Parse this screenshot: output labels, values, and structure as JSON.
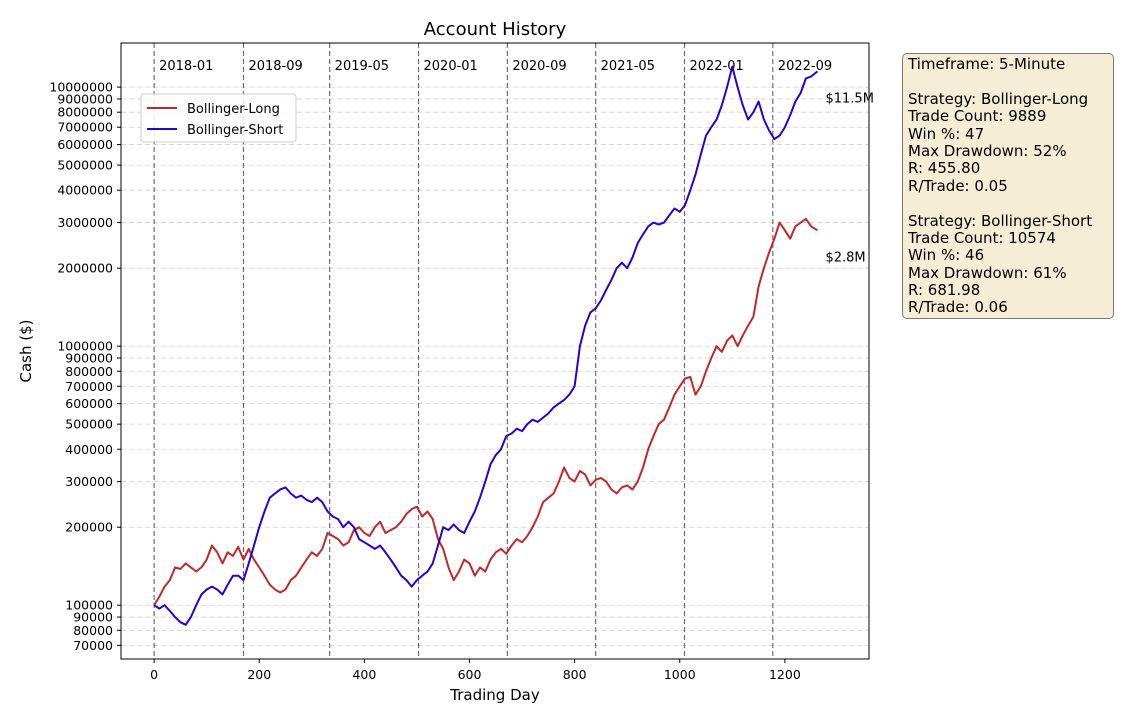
{
  "chart_data": {
    "type": "line",
    "title": "Account History",
    "xlabel": "Trading Day",
    "ylabel": "Cash ($)",
    "y_scale": "log",
    "xlim": [
      -63,
      1360
    ],
    "ylim": [
      62000,
      14800000
    ],
    "x_ticks": [
      0,
      200,
      400,
      600,
      800,
      1000,
      1200
    ],
    "x_tick_labels": [
      "0",
      "200",
      "400",
      "600",
      "800",
      "1000",
      "1200"
    ],
    "y_ticks": [
      70000,
      80000,
      90000,
      100000,
      200000,
      300000,
      400000,
      500000,
      600000,
      700000,
      800000,
      900000,
      1000000,
      2000000,
      3000000,
      4000000,
      5000000,
      6000000,
      7000000,
      8000000,
      9000000,
      10000000
    ],
    "y_tick_labels": [
      "70000",
      "80000",
      "90000",
      "100000",
      "200000",
      "300000",
      "400000",
      "500000",
      "600000",
      "700000",
      "800000",
      "900000",
      "1000000",
      "2000000",
      "3000000",
      "4000000",
      "5000000",
      "6000000",
      "7000000",
      "8000000",
      "9000000",
      "10000000"
    ],
    "grid": "horizontal dashed",
    "legend_position": "upper-left",
    "period_markers": [
      {
        "x": 0,
        "label": "2018-01"
      },
      {
        "x": 170,
        "label": "2018-09"
      },
      {
        "x": 334,
        "label": "2019-05"
      },
      {
        "x": 503,
        "label": "2020-01"
      },
      {
        "x": 672,
        "label": "2020-09"
      },
      {
        "x": 840,
        "label": "2021-05"
      },
      {
        "x": 1009,
        "label": "2022-01"
      },
      {
        "x": 1177,
        "label": "2022-09"
      }
    ],
    "series": [
      {
        "name": "Bollinger-Long",
        "color": "#c0282a",
        "end_label": "$2.8M",
        "x": [
          0,
          10,
          20,
          30,
          40,
          50,
          60,
          70,
          80,
          90,
          100,
          110,
          120,
          130,
          140,
          150,
          160,
          170,
          180,
          190,
          200,
          210,
          220,
          230,
          240,
          250,
          260,
          270,
          280,
          290,
          300,
          310,
          320,
          330,
          340,
          350,
          360,
          370,
          380,
          390,
          400,
          410,
          420,
          430,
          440,
          450,
          460,
          470,
          480,
          490,
          500,
          510,
          520,
          530,
          540,
          550,
          560,
          570,
          580,
          590,
          600,
          610,
          620,
          630,
          640,
          650,
          660,
          670,
          680,
          690,
          700,
          710,
          720,
          730,
          740,
          750,
          760,
          770,
          780,
          790,
          800,
          810,
          820,
          830,
          840,
          850,
          860,
          870,
          880,
          890,
          900,
          910,
          920,
          930,
          940,
          950,
          960,
          970,
          980,
          990,
          1000,
          1010,
          1020,
          1030,
          1040,
          1050,
          1060,
          1070,
          1080,
          1090,
          1100,
          1110,
          1120,
          1130,
          1140,
          1150,
          1160,
          1170,
          1180,
          1190,
          1200,
          1210,
          1220,
          1230,
          1240,
          1250,
          1262
        ],
        "y": [
          100000,
          108000,
          118000,
          125000,
          140000,
          138000,
          145000,
          140000,
          135000,
          140000,
          150000,
          170000,
          160000,
          145000,
          160000,
          155000,
          168000,
          150000,
          165000,
          150000,
          140000,
          130000,
          120000,
          115000,
          112000,
          115000,
          125000,
          130000,
          140000,
          150000,
          160000,
          155000,
          165000,
          190000,
          185000,
          180000,
          170000,
          175000,
          195000,
          200000,
          190000,
          185000,
          200000,
          210000,
          190000,
          195000,
          200000,
          210000,
          225000,
          235000,
          240000,
          220000,
          230000,
          215000,
          180000,
          165000,
          140000,
          125000,
          135000,
          150000,
          145000,
          130000,
          140000,
          135000,
          150000,
          160000,
          165000,
          158000,
          170000,
          180000,
          175000,
          185000,
          200000,
          220000,
          250000,
          260000,
          270000,
          300000,
          340000,
          310000,
          300000,
          330000,
          320000,
          290000,
          305000,
          310000,
          300000,
          280000,
          270000,
          285000,
          290000,
          280000,
          300000,
          340000,
          400000,
          450000,
          500000,
          520000,
          580000,
          650000,
          700000,
          750000,
          760000,
          650000,
          700000,
          800000,
          900000,
          1000000,
          950000,
          1050000,
          1100000,
          1000000,
          1100000,
          1200000,
          1300000,
          1700000,
          2000000,
          2300000,
          2600000,
          3000000,
          2800000,
          2600000,
          2900000,
          3000000,
          3100000,
          2900000,
          2800000
        ]
      },
      {
        "name": "Bollinger-Short",
        "color": "#2a00cc",
        "end_label": "$11.5M",
        "x": [
          0,
          10,
          20,
          30,
          40,
          50,
          60,
          70,
          80,
          90,
          100,
          110,
          120,
          130,
          140,
          150,
          160,
          170,
          180,
          190,
          200,
          210,
          220,
          230,
          240,
          250,
          260,
          270,
          280,
          290,
          300,
          310,
          320,
          330,
          340,
          350,
          360,
          370,
          380,
          390,
          400,
          410,
          420,
          430,
          440,
          450,
          460,
          470,
          480,
          490,
          500,
          510,
          520,
          530,
          540,
          550,
          560,
          570,
          580,
          590,
          600,
          610,
          620,
          630,
          640,
          650,
          660,
          670,
          680,
          690,
          700,
          710,
          720,
          730,
          740,
          750,
          760,
          770,
          780,
          790,
          800,
          810,
          820,
          830,
          840,
          850,
          860,
          870,
          880,
          890,
          900,
          910,
          920,
          930,
          940,
          950,
          960,
          970,
          980,
          990,
          1000,
          1010,
          1020,
          1030,
          1040,
          1050,
          1060,
          1070,
          1080,
          1090,
          1100,
          1110,
          1120,
          1130,
          1140,
          1150,
          1160,
          1170,
          1180,
          1190,
          1200,
          1210,
          1220,
          1230,
          1240,
          1250,
          1262
        ],
        "y": [
          100000,
          97000,
          100000,
          95000,
          90000,
          86000,
          84000,
          90000,
          100000,
          110000,
          115000,
          118000,
          115000,
          110000,
          120000,
          130000,
          130000,
          125000,
          145000,
          170000,
          200000,
          230000,
          260000,
          270000,
          280000,
          285000,
          270000,
          260000,
          265000,
          255000,
          250000,
          260000,
          250000,
          230000,
          220000,
          215000,
          200000,
          210000,
          200000,
          180000,
          175000,
          170000,
          165000,
          170000,
          160000,
          150000,
          140000,
          130000,
          125000,
          118000,
          125000,
          130000,
          135000,
          145000,
          170000,
          200000,
          195000,
          205000,
          195000,
          190000,
          210000,
          230000,
          260000,
          300000,
          350000,
          380000,
          400000,
          450000,
          460000,
          480000,
          470000,
          500000,
          520000,
          510000,
          530000,
          550000,
          580000,
          600000,
          620000,
          650000,
          700000,
          1000000,
          1200000,
          1350000,
          1400000,
          1500000,
          1650000,
          1800000,
          2000000,
          2100000,
          2000000,
          2200000,
          2500000,
          2700000,
          2900000,
          3000000,
          2950000,
          3000000,
          3200000,
          3400000,
          3300000,
          3500000,
          4000000,
          4600000,
          5500000,
          6500000,
          7000000,
          7500000,
          8500000,
          10000000,
          12000000,
          10000000,
          8500000,
          7500000,
          8000000,
          8800000,
          7500000,
          6800000,
          6300000,
          6500000,
          7000000,
          7800000,
          8800000,
          9500000,
          10800000,
          11000000,
          11500000
        ]
      }
    ]
  },
  "stats_box": {
    "lines": [
      "Timeframe: 5-Minute",
      "",
      "Strategy: Bollinger-Long",
      "Trade Count: 9889",
      "Win %: 47",
      "Max Drawdown: 52%",
      "R: 455.80",
      "R/Trade: 0.05",
      "",
      "Strategy: Bollinger-Short",
      "Trade Count: 10574",
      "Win %: 46",
      "Max Drawdown: 61%",
      "R: 681.98",
      "R/Trade: 0.06"
    ]
  }
}
